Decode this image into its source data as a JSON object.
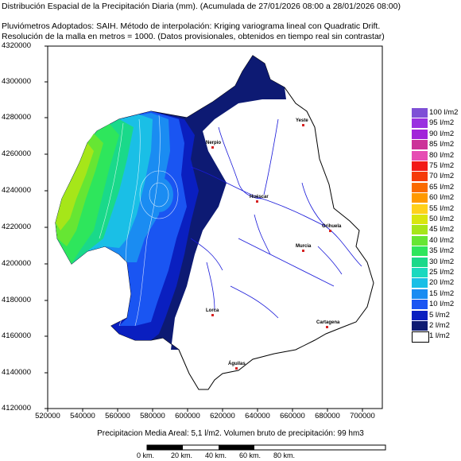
{
  "header": {
    "line1": "Distribución Espacial de la Precipitación Diaria (mm). (Acumulada de 27/01/2026 08:00 a 28/01/2026 08:00)",
    "line2": "Pluviómetros Adoptados: SAIH.  Método de interpolación: Kriging variograma lineal con Quadratic Drift.",
    "line3": "Resolución de la malla en metros = 1000. (Datos provisionales, obtenidos en tiempo real sin contrastar)"
  },
  "y_ticks": [
    "4320000",
    "4300000",
    "4280000",
    "4260000",
    "4240000",
    "4220000",
    "4200000",
    "4180000",
    "4160000",
    "4140000",
    "4120000"
  ],
  "x_ticks": [
    "520000",
    "540000",
    "560000",
    "580000",
    "600000",
    "620000",
    "640000",
    "660000",
    "680000",
    "700000"
  ],
  "legend": [
    {
      "label": "100 l/m2",
      "color": "#7e4fd6"
    },
    {
      "label": "95 l/m2",
      "color": "#9a2fe0"
    },
    {
      "label": "90 l/m2",
      "color": "#a224d9"
    },
    {
      "label": "85 l/m2",
      "color": "#cc3399"
    },
    {
      "label": "80 l/m2",
      "color": "#e64db3"
    },
    {
      "label": "75 l/m2",
      "color": "#f21919"
    },
    {
      "label": "70 l/m2",
      "color": "#f53b0a"
    },
    {
      "label": "65 l/m2",
      "color": "#fa6a00"
    },
    {
      "label": "60 l/m2",
      "color": "#ff9900"
    },
    {
      "label": "55 l/m2",
      "color": "#ffd11a"
    },
    {
      "label": "50 l/m2",
      "color": "#d9e60d"
    },
    {
      "label": "45 l/m2",
      "color": "#a6e619"
    },
    {
      "label": "40 l/m2",
      "color": "#66e633"
    },
    {
      "label": "35 l/m2",
      "color": "#2ee65c"
    },
    {
      "label": "30 l/m2",
      "color": "#1ad98a"
    },
    {
      "label": "25 l/m2",
      "color": "#1ad9bf"
    },
    {
      "label": "20 l/m2",
      "color": "#1abfe6"
    },
    {
      "label": "15 l/m2",
      "color": "#1a8cf2"
    },
    {
      "label": "10 l/m2",
      "color": "#1a55f2"
    },
    {
      "label": "5 l/m2",
      "color": "#0a1fc0"
    },
    {
      "label": "2 l/m2",
      "color": "#0d1a73"
    },
    {
      "label": "1 l/m2",
      "color": "#ffffff"
    }
  ],
  "footer": "Precipitacion Media Areal: 5,1 l/m2. Volumen bruto de precipitación: 99 hm3",
  "scale": [
    "0 km.",
    "20 km.",
    "40 km.",
    "60 km.",
    "80 km."
  ],
  "towns": [
    "Yeste",
    "Nerpio",
    "Huéscar",
    "Orihuela",
    "Murcia",
    "Lorca",
    "Cartagena",
    "Águilas"
  ]
}
